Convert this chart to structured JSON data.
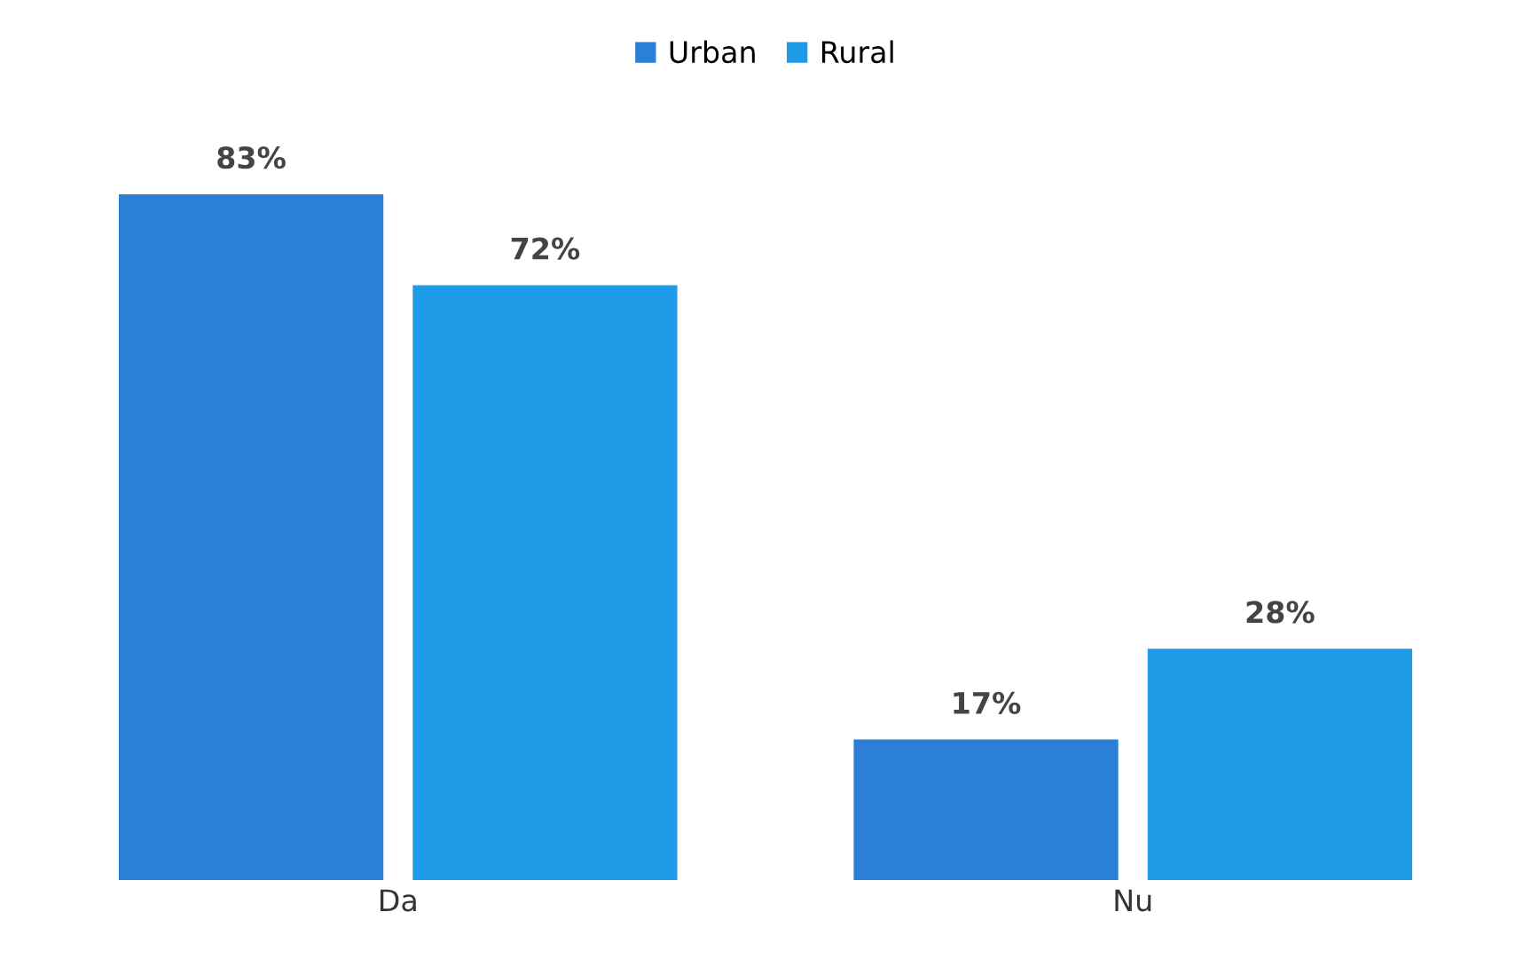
{
  "chart_data": {
    "type": "bar",
    "categories": [
      "Da",
      "Nu"
    ],
    "series": [
      {
        "name": "Urban",
        "color": "#2b7fd6",
        "values": [
          83,
          17
        ],
        "value_labels": [
          "83%",
          "17%"
        ]
      },
      {
        "name": "Rural",
        "color": "#1f9ae6",
        "values": [
          72,
          28
        ],
        "value_labels": [
          "72%",
          "28%"
        ]
      }
    ],
    "legend": "top",
    "grid": false,
    "tick_labels": "x"
  }
}
